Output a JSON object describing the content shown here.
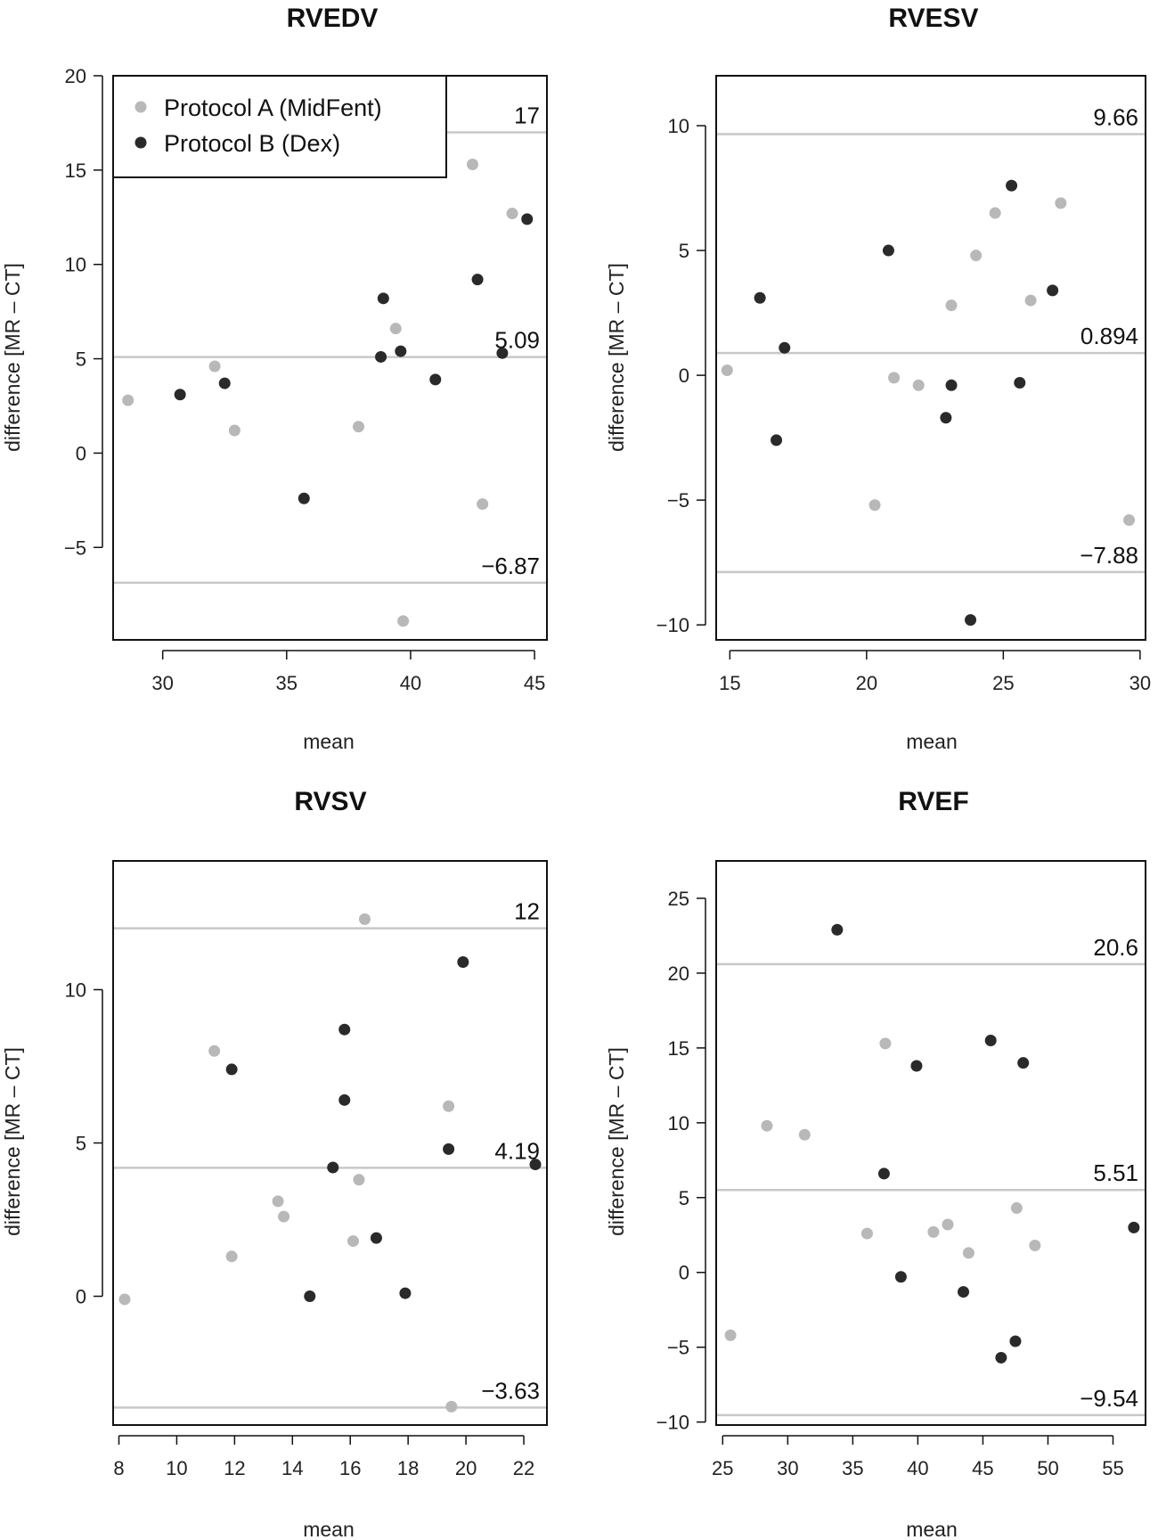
{
  "chart_data": [
    {
      "type": "scatter",
      "title": "RVEDV",
      "xlabel": "mean",
      "ylabel": "difference [MR – CT]",
      "xlim": [
        28,
        45.5
      ],
      "ylim": [
        -9.9,
        20
      ],
      "xticks": [
        "30",
        "35",
        "40",
        "45"
      ],
      "yticks": [
        "20",
        "15",
        "10",
        "5",
        "0",
        "−5"
      ],
      "lines": [
        {
          "value": 17,
          "label": "17"
        },
        {
          "value": 5.09,
          "label": "5.09"
        },
        {
          "value": -6.87,
          "label": "−6.87"
        }
      ],
      "legend": {
        "position": "top-left",
        "items": [
          "Protocol A (MidFent)",
          "Protocol B (Dex)"
        ]
      },
      "series": [
        {
          "name": "Protocol A (MidFent)",
          "color": "#b8b8b8",
          "points": [
            [
              28.6,
              2.8
            ],
            [
              32.1,
              4.6
            ],
            [
              32.9,
              1.2
            ],
            [
              37.9,
              1.4
            ],
            [
              39.4,
              6.6
            ],
            [
              39.7,
              -8.9
            ],
            [
              42.5,
              15.3
            ],
            [
              42.9,
              -2.7
            ],
            [
              44.1,
              12.7
            ]
          ]
        },
        {
          "name": "Protocol B (Dex)",
          "color": "#2a2a2a",
          "points": [
            [
              30.7,
              3.1
            ],
            [
              32.5,
              3.7
            ],
            [
              35.7,
              -2.4
            ],
            [
              38.8,
              5.1
            ],
            [
              38.9,
              8.2
            ],
            [
              39.6,
              5.4
            ],
            [
              41.0,
              3.9
            ],
            [
              42.7,
              9.2
            ],
            [
              43.7,
              5.3
            ],
            [
              44.7,
              12.4
            ]
          ]
        }
      ]
    },
    {
      "type": "scatter",
      "title": "RVESV",
      "xlabel": "mean",
      "ylabel": "difference [MR – CT]",
      "xlim": [
        14.5,
        30.2
      ],
      "ylim": [
        -10.6,
        12
      ],
      "xticks": [
        "15",
        "20",
        "25",
        "30"
      ],
      "yticks": [
        "10",
        "5",
        "0",
        "−5",
        "−10"
      ],
      "lines": [
        {
          "value": 9.66,
          "label": "9.66"
        },
        {
          "value": 0.894,
          "label": "0.894"
        },
        {
          "value": -7.88,
          "label": "−7.88"
        }
      ],
      "series": [
        {
          "name": "Protocol A (MidFent)",
          "color": "#b8b8b8",
          "points": [
            [
              14.9,
              0.2
            ],
            [
              20.3,
              -5.2
            ],
            [
              21.0,
              -0.1
            ],
            [
              21.9,
              -0.4
            ],
            [
              23.1,
              2.8
            ],
            [
              24.0,
              4.8
            ],
            [
              24.7,
              6.5
            ],
            [
              26.0,
              3.0
            ],
            [
              27.1,
              6.9
            ],
            [
              29.6,
              -5.8
            ]
          ]
        },
        {
          "name": "Protocol B (Dex)",
          "color": "#2a2a2a",
          "points": [
            [
              16.1,
              3.1
            ],
            [
              16.7,
              -2.6
            ],
            [
              17.0,
              1.1
            ],
            [
              20.8,
              5.0
            ],
            [
              22.9,
              -1.7
            ],
            [
              23.1,
              -0.4
            ],
            [
              23.8,
              -9.8
            ],
            [
              25.3,
              7.6
            ],
            [
              25.6,
              -0.3
            ],
            [
              26.8,
              3.4
            ]
          ]
        }
      ]
    },
    {
      "type": "scatter",
      "title": "RVSV",
      "xlabel": "mean",
      "ylabel": "difference [MR – CT]",
      "xlim": [
        7.8,
        22.8
      ],
      "ylim": [
        -4.2,
        14.2
      ],
      "xticks": [
        "8",
        "10",
        "12",
        "14",
        "16",
        "18",
        "20",
        "22"
      ],
      "yticks": [
        "10",
        "5",
        "0"
      ],
      "lines": [
        {
          "value": 12.0,
          "label": "12"
        },
        {
          "value": 4.19,
          "label": "4.19"
        },
        {
          "value": -3.63,
          "label": "−3.63"
        }
      ],
      "series": [
        {
          "name": "Protocol A (MidFent)",
          "color": "#b8b8b8",
          "points": [
            [
              8.2,
              -0.1
            ],
            [
              11.3,
              8.0
            ],
            [
              11.9,
              1.3
            ],
            [
              13.5,
              3.1
            ],
            [
              13.7,
              2.6
            ],
            [
              16.1,
              1.8
            ],
            [
              16.3,
              3.8
            ],
            [
              16.5,
              12.3
            ],
            [
              19.4,
              6.2
            ],
            [
              19.5,
              -3.6
            ]
          ]
        },
        {
          "name": "Protocol B (Dex)",
          "color": "#2a2a2a",
          "points": [
            [
              11.9,
              7.4
            ],
            [
              14.6,
              0.0
            ],
            [
              15.4,
              4.2
            ],
            [
              15.8,
              8.7
            ],
            [
              15.8,
              6.4
            ],
            [
              16.9,
              1.9
            ],
            [
              17.9,
              0.1
            ],
            [
              19.4,
              4.8
            ],
            [
              19.9,
              10.9
            ],
            [
              22.4,
              4.3
            ]
          ]
        }
      ]
    },
    {
      "type": "scatter",
      "title": "RVEF",
      "xlabel": "mean",
      "ylabel": "difference [MR – CT]",
      "xlim": [
        24.5,
        57.5
      ],
      "ylim": [
        -10.2,
        27.5
      ],
      "xticks": [
        "25",
        "30",
        "35",
        "40",
        "45",
        "50",
        "55"
      ],
      "yticks": [
        "25",
        "20",
        "15",
        "10",
        "5",
        "0",
        "−5",
        "−10"
      ],
      "lines": [
        {
          "value": 20.6,
          "label": "20.6"
        },
        {
          "value": 5.51,
          "label": "5.51"
        },
        {
          "value": -9.54,
          "label": "−9.54"
        }
      ],
      "series": [
        {
          "name": "Protocol A (MidFent)",
          "color": "#b8b8b8",
          "points": [
            [
              25.6,
              -4.2
            ],
            [
              28.4,
              9.8
            ],
            [
              31.3,
              9.2
            ],
            [
              36.1,
              2.6
            ],
            [
              37.5,
              15.3
            ],
            [
              41.2,
              2.7
            ],
            [
              42.3,
              3.2
            ],
            [
              43.9,
              1.3
            ],
            [
              47.6,
              4.3
            ],
            [
              49.0,
              1.8
            ]
          ]
        },
        {
          "name": "Protocol B (Dex)",
          "color": "#2a2a2a",
          "points": [
            [
              33.8,
              22.9
            ],
            [
              37.4,
              6.6
            ],
            [
              38.7,
              -0.3
            ],
            [
              39.9,
              13.8
            ],
            [
              43.5,
              -1.3
            ],
            [
              45.6,
              15.5
            ],
            [
              46.4,
              -5.7
            ],
            [
              47.5,
              -4.6
            ],
            [
              48.1,
              14.0
            ],
            [
              56.6,
              3.0
            ]
          ]
        }
      ]
    }
  ]
}
